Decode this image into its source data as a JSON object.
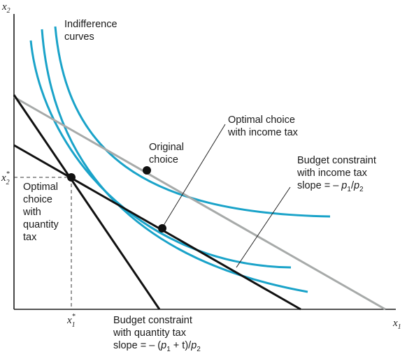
{
  "axes": {
    "y_label": "x",
    "y_sub": "2",
    "x_label": "x",
    "x_sub": "1",
    "y_star_label": "x",
    "y_star_sub": "2",
    "y_star_sup": "*",
    "x_star_label": "x",
    "x_star_sub": "1",
    "x_star_sup": "*"
  },
  "labels": {
    "indifference_line1": "Indifference",
    "indifference_line2": "curves",
    "original_line1": "Original",
    "original_line2": "choice",
    "optimal_income_line1": "Optimal choice",
    "optimal_income_line2": "with income tax",
    "budget_income_line1": "Budget constraint",
    "budget_income_line2": "with income tax",
    "budget_income_slope_prefix": "slope = – ",
    "budget_income_p": "p",
    "budget_income_p_sub1": "1",
    "budget_income_slash": "/",
    "budget_income_p_sub2": "2",
    "optimal_quantity_line1": "Optimal",
    "optimal_quantity_line2": "choice",
    "optimal_quantity_line3": "with",
    "optimal_quantity_line4": "quantity",
    "optimal_quantity_line5": "tax",
    "budget_quantity_line1": "Budget constraint",
    "budget_quantity_line2": "with quantity tax",
    "budget_quantity_slope_prefix": "slope = – (",
    "budget_quantity_p": "p",
    "budget_quantity_p_sub1": "1",
    "budget_quantity_plus_t": " + t)/",
    "budget_quantity_p_sub2": "2"
  },
  "colors": {
    "indifference": "#1aa3c9",
    "budget_black": "#111111",
    "budget_gray": "#a7aaa9",
    "axis": "#1a1a1a"
  }
}
